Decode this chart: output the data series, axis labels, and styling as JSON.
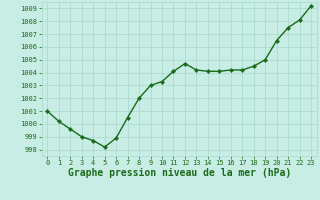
{
  "hours": [
    0,
    1,
    2,
    3,
    4,
    5,
    6,
    7,
    8,
    9,
    10,
    11,
    12,
    13,
    14,
    15,
    16,
    17,
    18,
    19,
    20,
    21,
    22,
    23
  ],
  "pressure": [
    1001.0,
    1000.2,
    999.6,
    999.0,
    998.7,
    998.2,
    998.9,
    1000.5,
    1002.0,
    1003.0,
    1003.3,
    1004.1,
    1004.7,
    1004.2,
    1004.1,
    1004.1,
    1004.2,
    1004.2,
    1004.5,
    1005.0,
    1006.5,
    1007.5,
    1008.1,
    1009.2
  ],
  "line_color": "#1a6b1a",
  "marker_color": "#1a6b1a",
  "bg_color": "#c8ede4",
  "grid_color": "#a8d8cc",
  "axis_label": "Graphe pression niveau de la mer (hPa)",
  "ylim": [
    997.5,
    1009.5
  ],
  "xlim": [
    -0.5,
    23.5
  ],
  "yticks": [
    998,
    999,
    1000,
    1001,
    1002,
    1003,
    1004,
    1005,
    1006,
    1007,
    1008,
    1009
  ],
  "xticks": [
    0,
    1,
    2,
    3,
    4,
    5,
    6,
    7,
    8,
    9,
    10,
    11,
    12,
    13,
    14,
    15,
    16,
    17,
    18,
    19,
    20,
    21,
    22,
    23
  ],
  "tick_label_fontsize": 5.0,
  "axis_label_fontsize": 7.0,
  "line_width": 1.0,
  "marker_size": 2.2
}
